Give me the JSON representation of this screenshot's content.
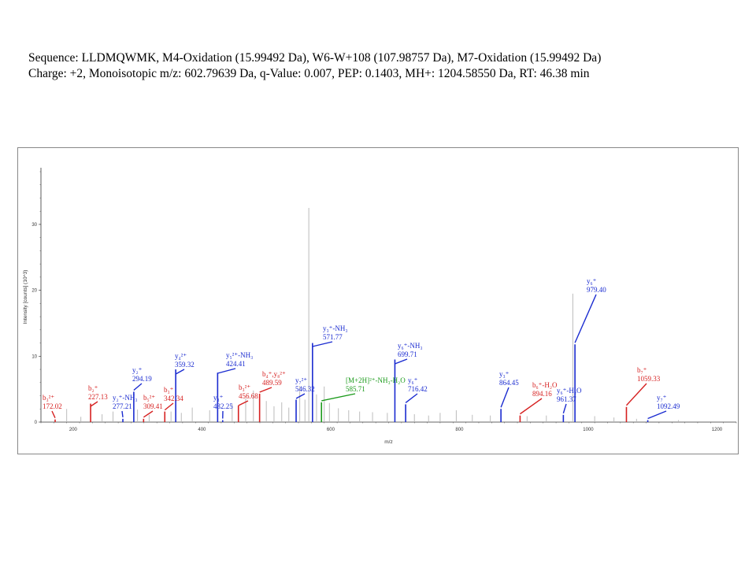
{
  "header": {
    "line1": "Sequence: LLDMQWMK, M4-Oxidation (15.99492 Da), W6-W+108 (107.98757 Da), M7-Oxidation (15.99492 Da)",
    "line2": "Charge: +2, Monoisotopic m/z: 602.79639 Da, q-Value: 0.007, PEP: 0.1403, MH+: 1204.58550 Da,   RT: 46.38 min"
  },
  "colors": {
    "b_ion": "#d62020",
    "y_ion": "#1a2bd0",
    "precursor": "#1a9a1a",
    "noise": "#b4b4b4",
    "axis": "#333333"
  },
  "chart_data": {
    "type": "bar",
    "xlabel": "m/z",
    "ylabel": "Intensity [counts] (10^3)",
    "xlim": [
      150,
      1230
    ],
    "ylim": [
      0,
      38
    ],
    "xticks": [
      200,
      400,
      600,
      800,
      1000,
      1200
    ],
    "yticks": [
      0,
      10,
      20,
      30
    ],
    "annotated_peaks": [
      {
        "mz": 172.02,
        "intensity": 0.4,
        "ion": "b",
        "label": [
          "b₃²⁺",
          "172.02"
        ]
      },
      {
        "mz": 227.13,
        "intensity": 2.8,
        "ion": "b",
        "label": [
          "b₂⁺",
          "227.13"
        ]
      },
      {
        "mz": 277.21,
        "intensity": 0.5,
        "ion": "y",
        "label": [
          "y₂⁺-NH₃",
          "277.21"
        ]
      },
      {
        "mz": 294.19,
        "intensity": 4.6,
        "ion": "y",
        "label": [
          "y₂⁺",
          "294.19"
        ]
      },
      {
        "mz": 309.41,
        "intensity": 0.5,
        "ion": "b",
        "label": [
          "b₅²⁺",
          "309.41"
        ]
      },
      {
        "mz": 342.34,
        "intensity": 1.6,
        "ion": "b",
        "label": [
          "b₃⁺",
          "342.34"
        ]
      },
      {
        "mz": 359.32,
        "intensity": 8.0,
        "ion": "y",
        "label": [
          "y₄²⁺",
          "359.32"
        ]
      },
      {
        "mz": 424.41,
        "intensity": 7.5,
        "ion": "y",
        "label": [
          "y₅²⁺-NH₃",
          "424.41"
        ]
      },
      {
        "mz": 432.25,
        "intensity": 0.3,
        "ion": "y",
        "label": [
          "y₃⁺",
          "432.25"
        ]
      },
      {
        "mz": 456.68,
        "intensity": 2.5,
        "ion": "b",
        "label": [
          "b₃²⁺",
          "456.68"
        ]
      },
      {
        "mz": 489.59,
        "intensity": 4.3,
        "ion": "b",
        "label": [
          "b₄⁺,y₈²⁺",
          "489.59"
        ]
      },
      {
        "mz": 546.32,
        "intensity": 3.4,
        "ion": "y",
        "label": [
          "y₇²⁺",
          "546.32"
        ]
      },
      {
        "mz": 571.77,
        "intensity": 12.0,
        "ion": "y",
        "label": [
          "y₃⁺-NH₃",
          "571.77"
        ]
      },
      {
        "mz": 585.71,
        "intensity": 3.0,
        "ion": "precursor",
        "label": [
          "[M+2H]²⁺-NH₃-H₂O",
          "585.71"
        ]
      },
      {
        "mz": 699.71,
        "intensity": 9.5,
        "ion": "y",
        "label": [
          "y₆⁺-NH₃",
          "699.71"
        ]
      },
      {
        "mz": 716.42,
        "intensity": 2.7,
        "ion": "y",
        "label": [
          "y₆⁺",
          "716.42"
        ]
      },
      {
        "mz": 864.45,
        "intensity": 2.0,
        "ion": "y",
        "label": [
          "y₃⁺",
          "864.45"
        ]
      },
      {
        "mz": 894.16,
        "intensity": 1.0,
        "ion": "b",
        "label": [
          "b₆⁺-H₂O",
          "894.16"
        ]
      },
      {
        "mz": 961.37,
        "intensity": 1.1,
        "ion": "y",
        "label": [
          "y₆⁺-H₂O",
          "961.37"
        ]
      },
      {
        "mz": 979.4,
        "intensity": 11.8,
        "ion": "y",
        "label": [
          "y₆⁺",
          "979.40"
        ]
      },
      {
        "mz": 1059.33,
        "intensity": 2.3,
        "ion": "b",
        "label": [
          "b₇⁺",
          "1059.33"
        ]
      },
      {
        "mz": 1092.49,
        "intensity": 0.3,
        "ion": "y",
        "label": [
          "y₇⁺",
          "1092.49"
        ]
      }
    ],
    "unannotated_peaks": [
      {
        "mz": 190,
        "intensity": 2.0
      },
      {
        "mz": 212,
        "intensity": 0.8
      },
      {
        "mz": 245,
        "intensity": 1.2
      },
      {
        "mz": 262,
        "intensity": 1.6
      },
      {
        "mz": 300,
        "intensity": 1.9
      },
      {
        "mz": 318,
        "intensity": 1.1
      },
      {
        "mz": 352,
        "intensity": 1.6
      },
      {
        "mz": 368,
        "intensity": 1.4
      },
      {
        "mz": 385,
        "intensity": 2.2
      },
      {
        "mz": 412,
        "intensity": 1.8
      },
      {
        "mz": 447,
        "intensity": 2.7
      },
      {
        "mz": 468,
        "intensity": 3.6
      },
      {
        "mz": 480,
        "intensity": 4.8
      },
      {
        "mz": 500,
        "intensity": 3.2
      },
      {
        "mz": 512,
        "intensity": 2.4
      },
      {
        "mz": 524,
        "intensity": 3.0
      },
      {
        "mz": 535,
        "intensity": 2.2
      },
      {
        "mz": 552,
        "intensity": 5.5
      },
      {
        "mz": 560,
        "intensity": 3.4
      },
      {
        "mz": 566,
        "intensity": 32.5
      },
      {
        "mz": 578,
        "intensity": 4.2
      },
      {
        "mz": 590,
        "intensity": 5.4
      },
      {
        "mz": 598,
        "intensity": 2.9
      },
      {
        "mz": 612,
        "intensity": 2.1
      },
      {
        "mz": 628,
        "intensity": 1.8
      },
      {
        "mz": 645,
        "intensity": 1.6
      },
      {
        "mz": 665,
        "intensity": 1.5
      },
      {
        "mz": 688,
        "intensity": 1.4
      },
      {
        "mz": 730,
        "intensity": 1.2
      },
      {
        "mz": 752,
        "intensity": 1.0
      },
      {
        "mz": 770,
        "intensity": 1.4
      },
      {
        "mz": 795,
        "intensity": 1.8
      },
      {
        "mz": 820,
        "intensity": 1.1
      },
      {
        "mz": 848,
        "intensity": 1.0
      },
      {
        "mz": 905,
        "intensity": 0.9
      },
      {
        "mz": 935,
        "intensity": 1.0
      },
      {
        "mz": 976,
        "intensity": 19.5
      },
      {
        "mz": 1010,
        "intensity": 0.9
      },
      {
        "mz": 1040,
        "intensity": 0.7
      },
      {
        "mz": 1075,
        "intensity": 0.5
      },
      {
        "mz": 1140,
        "intensity": 0.3
      }
    ]
  }
}
